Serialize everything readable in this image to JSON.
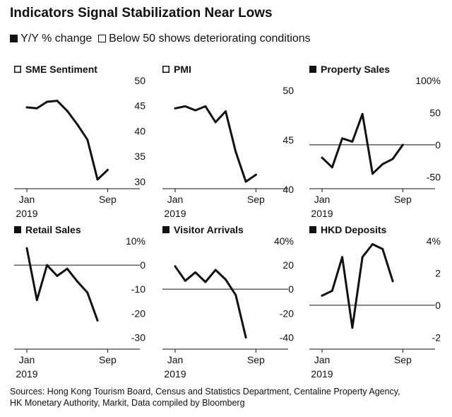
{
  "title": "Indicators Signal Stabilization Near Lows",
  "legend": [
    {
      "label": "Y/Y % change",
      "marker": "filled-square"
    },
    {
      "label": "Below 50 shows deteriorating conditions",
      "marker": "open-square"
    }
  ],
  "source": [
    "Sources: Hong Kong Tourism Board, Census and Statistics Department, Centaline Property Agency,",
    "HK Monetary Authority, Markit, Data compiled by Bloomberg"
  ],
  "chart_data": [
    {
      "type": "line",
      "title": "SME Sentiment",
      "marker": "open",
      "x": [
        "2019-01",
        "2019-02",
        "2019-03",
        "2019-04",
        "2019-05",
        "2019-06",
        "2019-07",
        "2019-08",
        "2019-09"
      ],
      "values": [
        44.7,
        44.5,
        45.8,
        46.0,
        44.0,
        41.3,
        38.3,
        30.4,
        32.3
      ],
      "ylim": [
        29,
        50
      ],
      "yticks": [
        30,
        35,
        40,
        45,
        50
      ],
      "ytick_labels": [
        "30",
        "35",
        "40",
        "45",
        "50"
      ],
      "xticks": [
        "Jan",
        "Sep"
      ],
      "xtick_sub": [
        "2019",
        ""
      ],
      "zero_line": null
    },
    {
      "type": "line",
      "title": "PMI",
      "marker": "open",
      "x": [
        "2019-01",
        "2019-02",
        "2019-03",
        "2019-04",
        "2019-05",
        "2019-06",
        "2019-07",
        "2019-08",
        "2019-09"
      ],
      "values": [
        48.2,
        48.4,
        48.0,
        48.4,
        46.8,
        47.9,
        43.8,
        40.8,
        41.5
      ],
      "ylim": [
        40.3,
        51
      ],
      "yticks": [
        40,
        45,
        50
      ],
      "ytick_labels": [
        "40",
        "45",
        "50"
      ],
      "xticks": [
        "Jan",
        "Sep"
      ],
      "xtick_sub": [
        "2019",
        ""
      ],
      "zero_line": null
    },
    {
      "type": "line",
      "title": "Property Sales",
      "marker": "filled",
      "x": [
        "2019-01",
        "2019-02",
        "2019-03",
        "2019-04",
        "2019-05",
        "2019-06",
        "2019-07",
        "2019-08",
        "2019-09"
      ],
      "values": [
        -20,
        -35,
        10,
        5,
        48,
        -45,
        -30,
        -22,
        0
      ],
      "ylim": [
        -65,
        100
      ],
      "yticks": [
        -50,
        0,
        50,
        100
      ],
      "ytick_labels": [
        "-50",
        "0",
        "50",
        "100%"
      ],
      "xticks": [
        "Jan",
        "Sep"
      ],
      "xtick_sub": [
        "2019",
        ""
      ],
      "zero_line": 0
    },
    {
      "type": "line",
      "title": "Retail Sales",
      "marker": "filled",
      "x": [
        "2019-01",
        "2019-02",
        "2019-03",
        "2019-04",
        "2019-05",
        "2019-06",
        "2019-07",
        "2019-08"
      ],
      "values": [
        7,
        -14.5,
        0,
        -4.5,
        -1.5,
        -6.8,
        -11.4,
        -23
      ],
      "ylim": [
        -34,
        10
      ],
      "yticks": [
        -30,
        -20,
        -10,
        0,
        10
      ],
      "ytick_labels": [
        "-30",
        "-20",
        "-10",
        "0",
        "10%"
      ],
      "xticks": [
        "Jan",
        "Sep"
      ],
      "xtick_sub": [
        "2019",
        ""
      ],
      "zero_line": 0
    },
    {
      "type": "line",
      "title": "Visitor Arrivals",
      "marker": "filled",
      "x": [
        "2019-01",
        "2019-02",
        "2019-03",
        "2019-04",
        "2019-05",
        "2019-06",
        "2019-07",
        "2019-08"
      ],
      "values": [
        19,
        7,
        14,
        6,
        16,
        8,
        -4.8,
        -40
      ],
      "ylim": [
        -48,
        40
      ],
      "yticks": [
        -40,
        -20,
        0,
        20,
        40
      ],
      "ytick_labels": [
        "-40",
        "-20",
        "0",
        "20",
        "40%"
      ],
      "xticks": [
        "Jan",
        "Sep"
      ],
      "xtick_sub": [
        "2019",
        ""
      ],
      "zero_line": 0
    },
    {
      "type": "line",
      "title": "HKD Deposits",
      "marker": "filled",
      "x": [
        "2019-01",
        "2019-02",
        "2019-03",
        "2019-04",
        "2019-05",
        "2019-06",
        "2019-07",
        "2019-08"
      ],
      "values": [
        0.6,
        0.9,
        3.0,
        -1.4,
        3.0,
        3.8,
        3.5,
        1.5
      ],
      "ylim": [
        -2.6,
        4
      ],
      "yticks": [
        -2,
        0,
        2,
        4
      ],
      "ytick_labels": [
        "-2",
        "0",
        "2",
        "4%"
      ],
      "xticks": [
        "Jan",
        "Sep"
      ],
      "xtick_sub": [
        "2019",
        ""
      ],
      "zero_line": 0
    }
  ]
}
